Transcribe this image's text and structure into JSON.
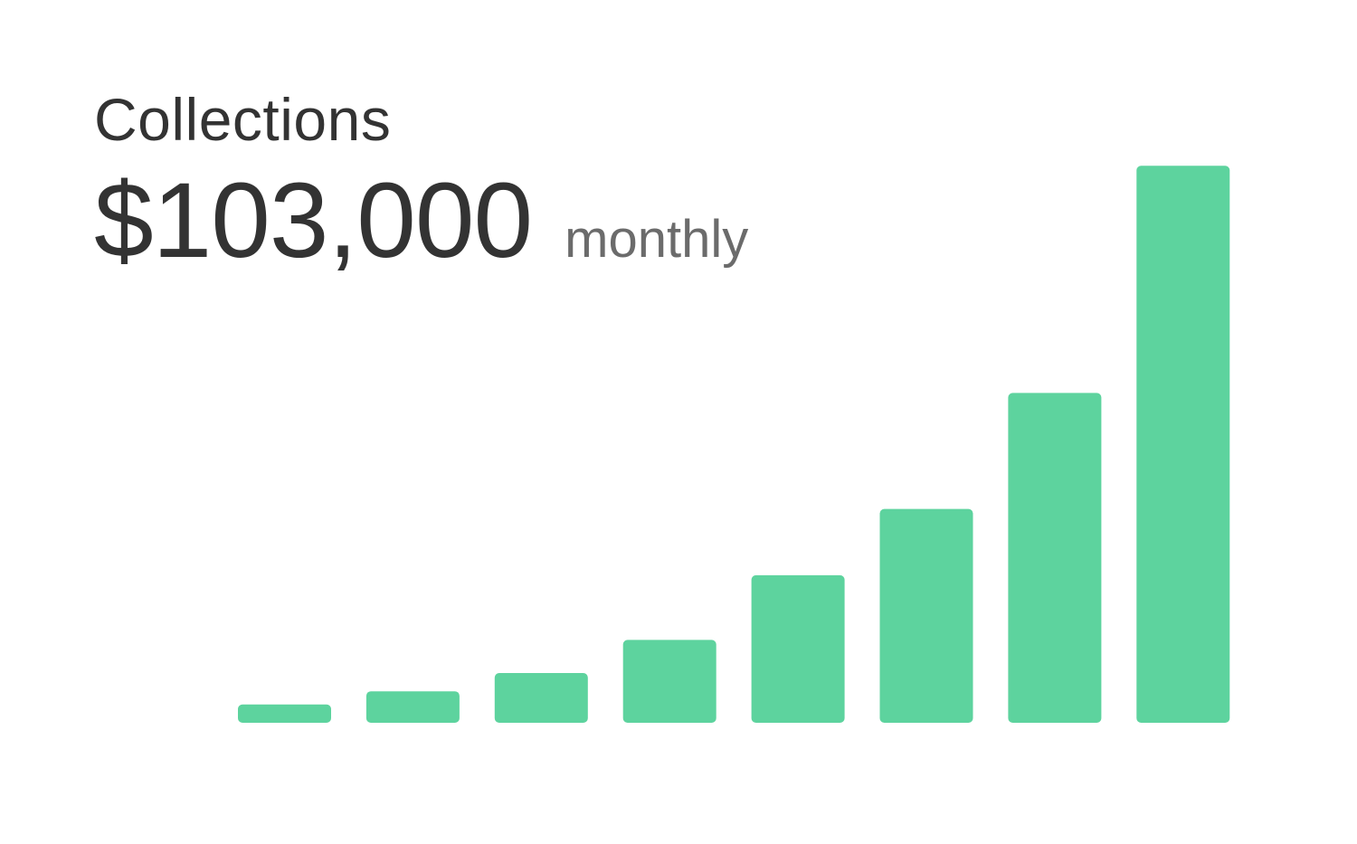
{
  "header": {
    "title": "Collections",
    "amount": "$103,000",
    "period": "monthly"
  },
  "colors": {
    "bar": "#5dd39e",
    "text": "#333333",
    "muted": "#6b6b6b"
  },
  "chart_data": {
    "type": "bar",
    "values": [
      1.1,
      1.9,
      3.0,
      5.0,
      8.9,
      12.9,
      19.9,
      33.6
    ],
    "ylim": [
      0,
      34
    ],
    "grid": false,
    "axes": false
  }
}
